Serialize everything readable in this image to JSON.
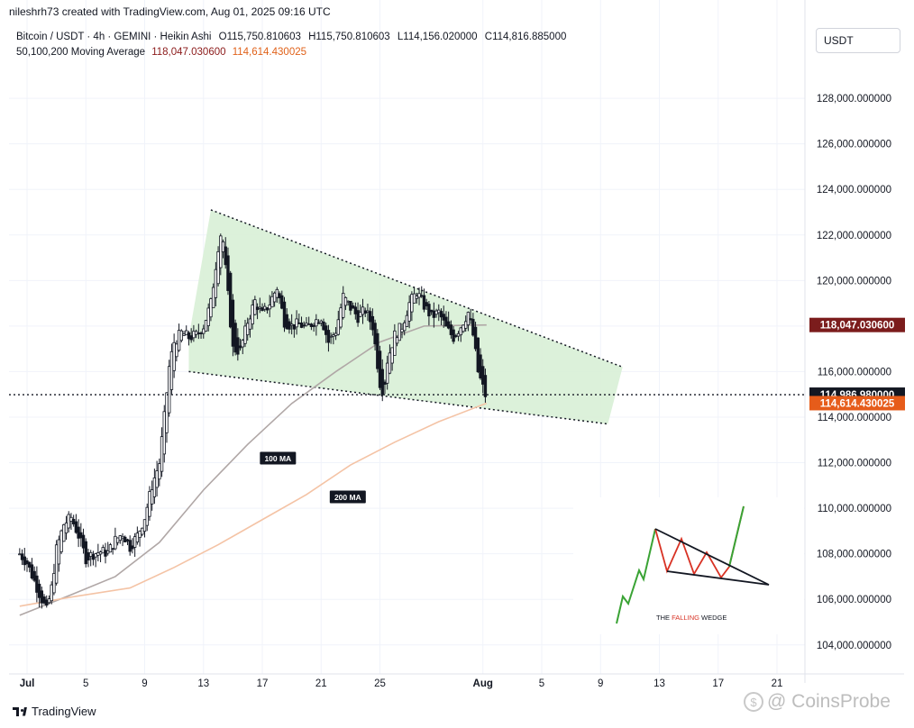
{
  "header": {
    "author_line": "nileshrh73 created with TradingView.com, Aug 01, 2025 09:16 UTC"
  },
  "legend": {
    "symbol_line": "Bitcoin / USDT · 4h · GEMINI · Heikin Ashi",
    "open": "O115,750.810603",
    "high": "H115,750.810603",
    "low": "L114,156.020000",
    "close": "C114,816.885000",
    "ma_label": "50,100,200 Moving Average",
    "ma_value_1": "118,047.030600",
    "ma_value_2": "114,614.430025"
  },
  "currency_button": "USDT",
  "footer": {
    "brand": "TradingView",
    "watermark": "CoinsProbe"
  },
  "colors": {
    "up": "#131722",
    "down": "#131722",
    "ma100": "#b0a7a6",
    "ma200": "#f4c3a5",
    "wedge_fill": "#d8f0d6",
    "tag_dark_red": "#7b1c1c",
    "tag_orange": "#e65c1a"
  },
  "chart_data": {
    "type": "candlestick",
    "y_axis": {
      "min": 103200,
      "max": 130100,
      "ticks": [
        104000,
        106000,
        108000,
        110000,
        112000,
        114000,
        116000,
        118000,
        120000,
        122000,
        124000,
        126000,
        128000
      ],
      "tick_labels": [
        "104,000.000000",
        "106,000.000000",
        "108,000.000000",
        "110,000.000000",
        "112,000.000000",
        "114,000.000000",
        "116,000.000000",
        "118,000.000000",
        "120,000.000000",
        "122,000.000000",
        "124,000.000000",
        "126,000.000000",
        "128,000.000000"
      ]
    },
    "x_axis": {
      "range": [
        "2025-07-01",
        "2025-08-23"
      ],
      "ticks": [
        {
          "date": "2025-07-01",
          "label": "Jul",
          "bold": true
        },
        {
          "date": "2025-07-05",
          "label": "5"
        },
        {
          "date": "2025-07-09",
          "label": "9"
        },
        {
          "date": "2025-07-13",
          "label": "13"
        },
        {
          "date": "2025-07-17",
          "label": "17"
        },
        {
          "date": "2025-07-21",
          "label": "21"
        },
        {
          "date": "2025-07-25",
          "label": "25"
        },
        {
          "date": "2025-08-01",
          "label": "Aug",
          "bold": true
        },
        {
          "date": "2025-08-05",
          "label": "5"
        },
        {
          "date": "2025-08-09",
          "label": "9"
        },
        {
          "date": "2025-08-13",
          "label": "13"
        },
        {
          "date": "2025-08-17",
          "label": "17"
        },
        {
          "date": "2025-08-21",
          "label": "21"
        }
      ]
    },
    "price_path": [
      [
        "2025-06-30T12:00",
        108000
      ],
      [
        "2025-07-01T00:00",
        107600
      ],
      [
        "2025-07-01T12:00",
        106800
      ],
      [
        "2025-07-02T00:00",
        106000
      ],
      [
        "2025-07-02T08:00",
        105500
      ],
      [
        "2025-07-02T16:00",
        106500
      ],
      [
        "2025-07-03T00:00",
        108200
      ],
      [
        "2025-07-03T12:00",
        109300
      ],
      [
        "2025-07-04T00:00",
        109600
      ],
      [
        "2025-07-04T12:00",
        108800
      ],
      [
        "2025-07-05T00:00",
        107800
      ],
      [
        "2025-07-05T12:00",
        108000
      ],
      [
        "2025-07-06T00:00",
        108100
      ],
      [
        "2025-07-06T12:00",
        108050
      ],
      [
        "2025-07-07T00:00",
        108600
      ],
      [
        "2025-07-07T12:00",
        108900
      ],
      [
        "2025-07-08T00:00",
        108300
      ],
      [
        "2025-07-08T12:00",
        108800
      ],
      [
        "2025-07-09T00:00",
        109600
      ],
      [
        "2025-07-09T12:00",
        111000
      ],
      [
        "2025-07-10T00:00",
        112000
      ],
      [
        "2025-07-10T08:00",
        114000
      ],
      [
        "2025-07-10T16:00",
        116200
      ],
      [
        "2025-07-11T00:00",
        117300
      ],
      [
        "2025-07-11T12:00",
        117700
      ],
      [
        "2025-07-12T00:00",
        117500
      ],
      [
        "2025-07-12T12:00",
        117600
      ],
      [
        "2025-07-13T00:00",
        118000
      ],
      [
        "2025-07-13T12:00",
        119000
      ],
      [
        "2025-07-14T00:00",
        121500
      ],
      [
        "2025-07-14T06:00",
        122300
      ],
      [
        "2025-07-14T12:00",
        120500
      ],
      [
        "2025-07-15T00:00",
        117000
      ],
      [
        "2025-07-15T12:00",
        116900
      ],
      [
        "2025-07-16T00:00",
        118200
      ],
      [
        "2025-07-16T12:00",
        119100
      ],
      [
        "2025-07-17T00:00",
        118500
      ],
      [
        "2025-07-17T12:00",
        119000
      ],
      [
        "2025-07-18T00:00",
        119700
      ],
      [
        "2025-07-18T12:00",
        118200
      ],
      [
        "2025-07-19T00:00",
        118000
      ],
      [
        "2025-07-19T12:00",
        118100
      ],
      [
        "2025-07-20T00:00",
        117900
      ],
      [
        "2025-07-20T12:00",
        118200
      ],
      [
        "2025-07-21T00:00",
        118400
      ],
      [
        "2025-07-21T12:00",
        117300
      ],
      [
        "2025-07-22T00:00",
        117800
      ],
      [
        "2025-07-22T12:00",
        119300
      ],
      [
        "2025-07-23T00:00",
        118800
      ],
      [
        "2025-07-23T12:00",
        118400
      ],
      [
        "2025-07-24T00:00",
        118700
      ],
      [
        "2025-07-24T12:00",
        118000
      ],
      [
        "2025-07-25T00:00",
        115500
      ],
      [
        "2025-07-25T06:00",
        115100
      ],
      [
        "2025-07-25T12:00",
        116500
      ],
      [
        "2025-07-26T00:00",
        117600
      ],
      [
        "2025-07-26T12:00",
        118000
      ],
      [
        "2025-07-27T00:00",
        119000
      ],
      [
        "2025-07-27T12:00",
        119500
      ],
      [
        "2025-07-28T00:00",
        118900
      ],
      [
        "2025-07-28T12:00",
        118400
      ],
      [
        "2025-07-29T00:00",
        118600
      ],
      [
        "2025-07-29T12:00",
        117900
      ],
      [
        "2025-07-30T00:00",
        117500
      ],
      [
        "2025-07-30T12:00",
        118000
      ],
      [
        "2025-07-31T00:00",
        118600
      ],
      [
        "2025-07-31T08:00",
        117600
      ],
      [
        "2025-07-31T16:00",
        116000
      ],
      [
        "2025-08-01T00:00",
        115300
      ],
      [
        "2025-08-01T06:00",
        114800
      ]
    ],
    "series": [
      {
        "name": "100 MA",
        "points": [
          [
            "2025-06-30T12:00",
            105300
          ],
          [
            "2025-07-04T00:00",
            106200
          ],
          [
            "2025-07-07T00:00",
            107000
          ],
          [
            "2025-07-10T00:00",
            108500
          ],
          [
            "2025-07-13T00:00",
            110800
          ],
          [
            "2025-07-16T00:00",
            112800
          ],
          [
            "2025-07-19T00:00",
            114600
          ],
          [
            "2025-07-22T00:00",
            116000
          ],
          [
            "2025-07-25T00:00",
            117300
          ],
          [
            "2025-07-28T00:00",
            118000
          ],
          [
            "2025-08-01T06:00",
            118047
          ]
        ]
      },
      {
        "name": "200 MA",
        "points": [
          [
            "2025-06-30T12:00",
            105700
          ],
          [
            "2025-07-04T00:00",
            106100
          ],
          [
            "2025-07-08T00:00",
            106500
          ],
          [
            "2025-07-11T00:00",
            107400
          ],
          [
            "2025-07-14T00:00",
            108400
          ],
          [
            "2025-07-17T00:00",
            109500
          ],
          [
            "2025-07-20T00:00",
            110600
          ],
          [
            "2025-07-23T00:00",
            111900
          ],
          [
            "2025-07-26T00:00",
            112900
          ],
          [
            "2025-07-29T00:00",
            113800
          ],
          [
            "2025-08-01T06:00",
            114614
          ]
        ]
      }
    ],
    "annotations": {
      "ma_tags": [
        {
          "text": "100 MA",
          "date": "2025-07-18T00:00",
          "value": 112200
        },
        {
          "text": "200 MA",
          "date": "2025-07-22T18:00",
          "value": 110500
        }
      ],
      "wedge": {
        "upper_line": [
          [
            "2025-07-13T12:00",
            123100
          ],
          [
            "2025-08-10T12:00",
            116200
          ]
        ],
        "lower_line": [
          [
            "2025-07-12T00:00",
            116000
          ],
          [
            "2025-08-09T12:00",
            113700
          ]
        ],
        "fill_polygon": [
          [
            "2025-07-12T00:00",
            117500
          ],
          [
            "2025-07-13T12:00",
            123100
          ],
          [
            "2025-08-10T12:00",
            116200
          ],
          [
            "2025-08-09T12:00",
            113700
          ],
          [
            "2025-07-12T00:00",
            116000
          ]
        ]
      },
      "current_price_line": {
        "value": 114987,
        "label": "114,986.980000"
      },
      "price_tags": [
        {
          "value": 118047.0306,
          "label": "118,047.030600",
          "color": "tag_dark_red"
        },
        {
          "value": 114986.98,
          "label": "114,986.980000",
          "color": "black"
        },
        {
          "value": 114614.430025,
          "label": "114,614.430025",
          "color": "tag_orange"
        }
      ],
      "inset": {
        "caption_prefix": "THE",
        "caption_highlight": "FALLING",
        "caption_suffix": "WEDGE"
      }
    }
  }
}
